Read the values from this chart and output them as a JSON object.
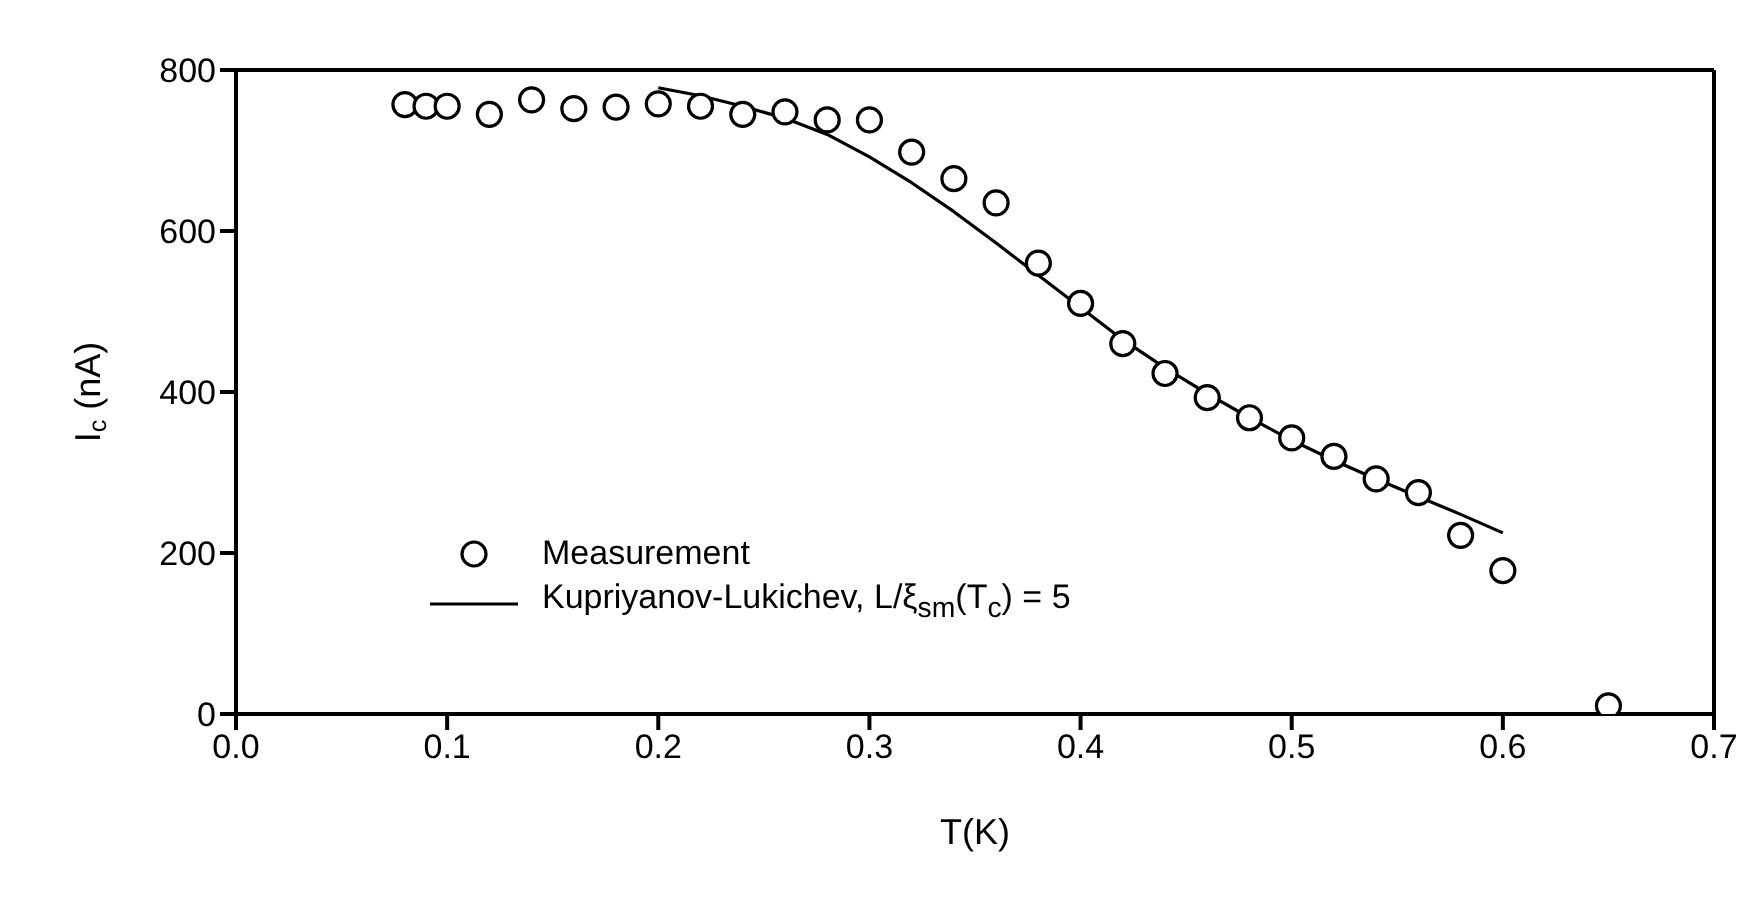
{
  "chart_data": {
    "type": "scatter",
    "xlabel": "T(K)",
    "ylabel": "I$_{c}$ (nA)",
    "xlim": [
      0,
      0.7
    ],
    "ylim": [
      0,
      800
    ],
    "xticks": [
      {
        "value": 0,
        "label": "0.0"
      },
      {
        "value": 0.1,
        "label": "0.1"
      },
      {
        "value": 0.2,
        "label": "0.2"
      },
      {
        "value": 0.3,
        "label": "0.3"
      },
      {
        "value": 0.4,
        "label": "0.4"
      },
      {
        "value": 0.5,
        "label": "0.5"
      },
      {
        "value": 0.6,
        "label": "0.6"
      },
      {
        "value": 0.7,
        "label": "0.7"
      }
    ],
    "yticks": [
      0,
      200,
      400,
      600,
      800
    ],
    "grid": false,
    "legend": "bottom left",
    "series": [
      {
        "name": "Measurement",
        "marker": "circle",
        "color": "#000000",
        "x": [
          0.08,
          0.09,
          0.1,
          0.12,
          0.14,
          0.16,
          0.18,
          0.2,
          0.22,
          0.24,
          0.26,
          0.28,
          0.3,
          0.32,
          0.34,
          0.36,
          0.38,
          0.4,
          0.42,
          0.44,
          0.46,
          0.48,
          0.5,
          0.52,
          0.54,
          0.56,
          0.58,
          0.6,
          0.65
        ],
        "values": [
          757,
          755,
          755,
          745,
          763,
          752,
          754,
          758,
          755,
          745,
          748,
          738,
          738,
          698,
          665,
          635,
          560,
          510,
          460,
          423,
          393,
          368,
          343,
          320,
          292,
          275,
          222,
          178,
          10
        ]
      },
      {
        "name": "Kupriyanov-Lukichev,  L/ξ$_{sm}$(T$_{c}$) = 5",
        "type": "line",
        "marker": "none",
        "line_style": "solid",
        "color": "#000000",
        "x": [
          0.2,
          0.22,
          0.24,
          0.26,
          0.28,
          0.3,
          0.32,
          0.34,
          0.36,
          0.38,
          0.4,
          0.42,
          0.44,
          0.46,
          0.48,
          0.5,
          0.52,
          0.54,
          0.56,
          0.58,
          0.6
        ],
        "values": [
          778,
          768,
          755,
          740,
          720,
          692,
          660,
          624,
          585,
          545,
          505,
          465,
          430,
          398,
          368,
          340,
          315,
          292,
          270,
          248,
          225
        ]
      }
    ]
  }
}
